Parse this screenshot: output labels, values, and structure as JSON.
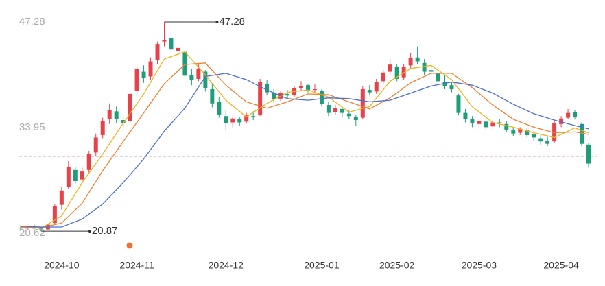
{
  "chart_data": {
    "type": "candlestick",
    "ylim": [
      20.62,
      47.28
    ],
    "yticks": [
      47.28,
      33.95,
      20.62
    ],
    "xlim": [
      0,
      83
    ],
    "xticks": [
      {
        "value": 6,
        "label": "2024-10"
      },
      {
        "value": 17,
        "label": "2024-11"
      },
      {
        "value": 30,
        "label": "2024-12"
      },
      {
        "value": 44,
        "label": "2025-01"
      },
      {
        "value": 55,
        "label": "2025-02"
      },
      {
        "value": 67,
        "label": "2025-03"
      },
      {
        "value": 79,
        "label": "2025-04"
      }
    ],
    "up_color": "#e8414a",
    "down_color": "#1e9e78",
    "ohlc": [
      [
        21.3,
        21.6,
        21.0,
        21.2
      ],
      [
        21.2,
        21.5,
        20.95,
        21.4
      ],
      [
        21.4,
        21.7,
        21.1,
        21.2
      ],
      [
        21.2,
        21.4,
        20.87,
        21.1
      ],
      [
        21.1,
        21.8,
        21.0,
        21.7
      ],
      [
        21.9,
        24.3,
        21.8,
        24.0
      ],
      [
        24.2,
        26.5,
        23.6,
        26.0
      ],
      [
        26.5,
        29.7,
        26.2,
        29.0
      ],
      [
        28.6,
        29.0,
        26.8,
        27.2
      ],
      [
        27.4,
        28.9,
        27.0,
        28.4
      ],
      [
        28.6,
        31.0,
        28.2,
        30.6
      ],
      [
        30.8,
        33.2,
        30.3,
        32.7
      ],
      [
        33.0,
        35.2,
        32.6,
        34.8
      ],
      [
        35.0,
        37.0,
        34.4,
        36.2
      ],
      [
        36.0,
        36.6,
        34.5,
        35.0
      ],
      [
        34.9,
        35.6,
        33.8,
        34.5
      ],
      [
        34.8,
        38.6,
        34.6,
        38.2
      ],
      [
        38.6,
        41.9,
        38.2,
        41.4
      ],
      [
        41.0,
        41.8,
        39.6,
        40.2
      ],
      [
        40.4,
        42.8,
        40.0,
        42.3
      ],
      [
        42.5,
        44.8,
        42.0,
        44.5
      ],
      [
        44.8,
        47.28,
        44.2,
        45.0
      ],
      [
        45.2,
        46.3,
        43.4,
        43.8
      ],
      [
        43.6,
        44.6,
        42.6,
        44.0
      ],
      [
        43.5,
        43.8,
        40.2,
        40.5
      ],
      [
        40.6,
        41.4,
        39.3,
        40.0
      ],
      [
        40.1,
        42.0,
        39.8,
        41.4
      ],
      [
        41.0,
        41.2,
        38.5,
        38.9
      ],
      [
        38.8,
        39.4,
        36.5,
        37.0
      ],
      [
        37.2,
        37.8,
        35.2,
        35.6
      ],
      [
        35.4,
        36.1,
        33.7,
        34.5
      ],
      [
        34.6,
        35.4,
        34.0,
        35.1
      ],
      [
        35.0,
        35.3,
        34.2,
        34.6
      ],
      [
        34.7,
        35.8,
        34.5,
        35.5
      ],
      [
        35.4,
        36.0,
        34.9,
        35.3
      ],
      [
        35.6,
        40.1,
        35.4,
        39.7
      ],
      [
        39.5,
        40.0,
        38.0,
        38.4
      ],
      [
        38.3,
        38.8,
        37.1,
        37.5
      ],
      [
        37.6,
        38.6,
        37.3,
        38.3
      ],
      [
        38.2,
        38.7,
        37.6,
        38.0
      ],
      [
        38.1,
        39.2,
        37.8,
        38.9
      ],
      [
        38.9,
        39.8,
        38.6,
        39.2
      ],
      [
        39.3,
        39.5,
        38.4,
        38.6
      ],
      [
        38.7,
        39.4,
        38.3,
        38.8
      ],
      [
        38.6,
        38.8,
        36.6,
        36.9
      ],
      [
        36.8,
        37.2,
        35.4,
        35.8
      ],
      [
        35.9,
        36.8,
        35.6,
        36.4
      ],
      [
        36.3,
        36.5,
        35.2,
        35.8
      ],
      [
        35.7,
        36.2,
        35.0,
        35.4
      ],
      [
        35.3,
        35.6,
        34.2,
        34.9
      ],
      [
        35.2,
        39.2,
        35.0,
        38.8
      ],
      [
        38.7,
        39.3,
        38.0,
        38.4
      ],
      [
        38.5,
        40.1,
        38.2,
        39.7
      ],
      [
        39.8,
        41.2,
        39.4,
        40.9
      ],
      [
        41.0,
        42.6,
        40.6,
        41.9
      ],
      [
        41.6,
        41.9,
        39.8,
        40.1
      ],
      [
        40.3,
        42.0,
        40.0,
        41.6
      ],
      [
        41.8,
        43.3,
        41.4,
        42.7
      ],
      [
        42.8,
        44.2,
        41.9,
        42.3
      ],
      [
        42.1,
        42.6,
        40.6,
        41.0
      ],
      [
        41.2,
        41.9,
        40.5,
        41.0
      ],
      [
        40.8,
        41.1,
        39.4,
        39.8
      ],
      [
        39.7,
        40.6,
        38.8,
        39.2
      ],
      [
        39.3,
        39.7,
        38.4,
        38.8
      ],
      [
        38.0,
        38.2,
        35.5,
        35.8
      ],
      [
        35.8,
        36.3,
        34.6,
        35.0
      ],
      [
        35.0,
        35.4,
        34.0,
        34.5
      ],
      [
        34.4,
        35.1,
        33.8,
        34.8
      ],
      [
        34.7,
        35.0,
        33.6,
        34.0
      ],
      [
        34.1,
        34.9,
        33.8,
        34.6
      ],
      [
        34.6,
        35.0,
        34.0,
        34.5
      ],
      [
        34.4,
        34.8,
        33.4,
        33.7
      ],
      [
        33.6,
        34.0,
        32.9,
        33.2
      ],
      [
        33.3,
        34.0,
        33.0,
        33.8
      ],
      [
        33.6,
        33.9,
        32.7,
        33.0
      ],
      [
        33.1,
        33.5,
        32.3,
        32.7
      ],
      [
        32.6,
        33.0,
        31.8,
        32.2
      ],
      [
        32.3,
        32.8,
        31.6,
        31.9
      ],
      [
        32.2,
        34.9,
        32.0,
        34.5
      ],
      [
        34.4,
        35.4,
        34.0,
        35.1
      ],
      [
        35.2,
        36.3,
        35.0,
        35.8
      ],
      [
        35.9,
        36.2,
        35.0,
        35.3
      ],
      [
        34.4,
        34.6,
        31.6,
        31.9
      ],
      [
        31.8,
        32.0,
        28.9,
        29.4
      ]
    ],
    "series": [
      {
        "color": "#f2b21b",
        "x": [
          0,
          3,
          6,
          9,
          12,
          15,
          18,
          21,
          24,
          27,
          30,
          33,
          36,
          39,
          42,
          45,
          48,
          51,
          54,
          57,
          60,
          63,
          66,
          69,
          72,
          75,
          78,
          81,
          83
        ],
        "values": [
          21.3,
          21.25,
          22.8,
          27.0,
          30.6,
          34.5,
          38.2,
          42.6,
          43.5,
          40.6,
          37.4,
          35.3,
          37.0,
          38.4,
          38.7,
          37.8,
          35.9,
          36.6,
          39.8,
          41.4,
          41.8,
          40.0,
          36.6,
          34.6,
          34.0,
          33.3,
          32.7,
          33.9,
          33.3
        ]
      },
      {
        "color": "#ef7f2e",
        "x": [
          0,
          3,
          6,
          9,
          12,
          15,
          18,
          21,
          24,
          27,
          30,
          33,
          36,
          39,
          42,
          45,
          48,
          51,
          54,
          57,
          60,
          63,
          66,
          69,
          72,
          75,
          78,
          81,
          83
        ],
        "values": [
          21.4,
          21.3,
          21.9,
          24.4,
          28.5,
          32.2,
          35.8,
          39.5,
          41.9,
          42.1,
          39.3,
          37.2,
          36.4,
          37.2,
          38.2,
          38.1,
          37.2,
          36.3,
          37.7,
          39.6,
          40.8,
          40.8,
          39.0,
          36.8,
          35.0,
          34.0,
          33.3,
          33.4,
          33.1
        ]
      },
      {
        "color": "#4a6fd3",
        "x": [
          0,
          3,
          6,
          9,
          12,
          15,
          18,
          21,
          24,
          27,
          30,
          33,
          36,
          39,
          42,
          45,
          48,
          51,
          54,
          57,
          60,
          63,
          66,
          69,
          72,
          75,
          78,
          81,
          83
        ],
        "values": [
          21.5,
          21.4,
          21.4,
          22.4,
          24.3,
          27.0,
          30.0,
          33.5,
          36.4,
          40.4,
          40.8,
          40.0,
          38.7,
          37.6,
          37.4,
          37.7,
          37.6,
          37.2,
          37.4,
          38.3,
          39.2,
          39.7,
          39.3,
          38.3,
          36.9,
          35.7,
          34.9,
          34.2,
          33.8
        ]
      }
    ],
    "ref_line": 30.31,
    "max_label": {
      "x": 21,
      "value": 47.28
    },
    "min_label": {
      "x": 3,
      "value": 20.87
    }
  }
}
